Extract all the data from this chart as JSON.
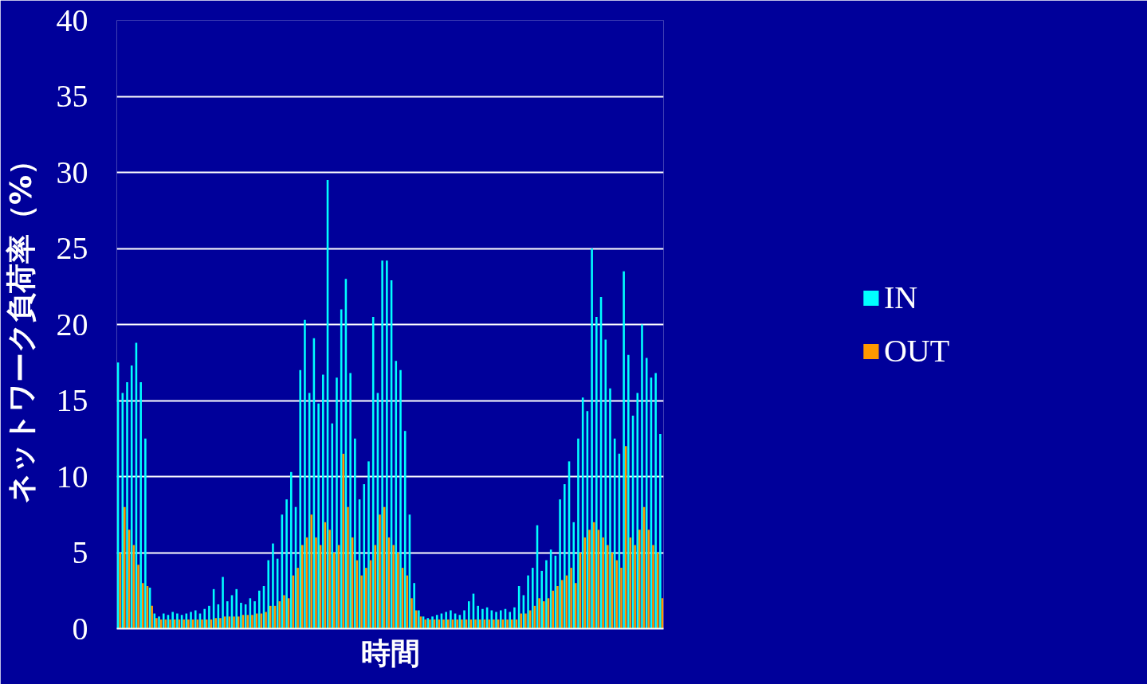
{
  "chart_data": {
    "type": "bar",
    "xlabel": "時間",
    "ylabel": "ネットワーク負荷率（%）",
    "categories": [
      null,
      null,
      null,
      null,
      null,
      null,
      null,
      null,
      null,
      null,
      null,
      null,
      null,
      null,
      null,
      null,
      null,
      null,
      null,
      null,
      null,
      null,
      null,
      null,
      null,
      null,
      null,
      null,
      null,
      null,
      null,
      null,
      null,
      null,
      null,
      null,
      null,
      null,
      null,
      null,
      null,
      null,
      null,
      null,
      null,
      null,
      null,
      null,
      null,
      null,
      null,
      null,
      null,
      null,
      null,
      null,
      null,
      null,
      null,
      null,
      null,
      null,
      null,
      null,
      null,
      null,
      null,
      null,
      null,
      null,
      null,
      null,
      null,
      null,
      null,
      null,
      null,
      null,
      null,
      null,
      null,
      null,
      null,
      null,
      null,
      null,
      null,
      null,
      null,
      null,
      null,
      null,
      null,
      null,
      null,
      null,
      null,
      null,
      null,
      null,
      null,
      null,
      null,
      null,
      null,
      null,
      null,
      null,
      null,
      null,
      null,
      null,
      null,
      null,
      null,
      null,
      null,
      null,
      null,
      null
    ],
    "series": [
      {
        "name": "IN",
        "color": "#00ffff",
        "values": [
          17.5,
          15.5,
          16.2,
          17.3,
          18.8,
          16.2,
          12.5,
          2.7,
          1.0,
          0.8,
          1.0,
          0.9,
          1.1,
          1.0,
          0.9,
          1.0,
          1.1,
          1.2,
          1.0,
          1.3,
          1.5,
          2.6,
          1.6,
          3.4,
          1.8,
          2.2,
          2.6,
          1.7,
          1.6,
          2.0,
          1.8,
          2.5,
          2.8,
          4.5,
          5.6,
          4.6,
          7.5,
          8.5,
          10.3,
          8.0,
          17.0,
          20.3,
          15.5,
          19.1,
          14.8,
          16.7,
          29.5,
          13.5,
          16.5,
          21.0,
          23.0,
          16.8,
          12.5,
          8.5,
          9.5,
          11.0,
          20.5,
          15.5,
          24.2,
          24.2,
          22.9,
          17.6,
          17.0,
          13.0,
          7.5,
          3.0,
          1.2,
          0.8,
          0.7,
          0.8,
          0.9,
          1.0,
          1.1,
          1.2,
          1.0,
          0.9,
          1.2,
          1.8,
          2.3,
          1.5,
          1.3,
          1.4,
          1.2,
          1.1,
          1.2,
          1.3,
          1.1,
          1.4,
          2.8,
          2.2,
          3.5,
          4.0,
          6.8,
          3.8,
          4.5,
          5.2,
          4.8,
          8.5,
          9.5,
          11.0,
          7.0,
          12.5,
          15.2,
          14.3,
          25.0,
          20.5,
          21.8,
          19.0,
          15.8,
          12.5,
          11.5,
          23.5,
          18.0,
          14.0,
          15.5,
          20.0,
          17.8,
          16.5,
          16.8,
          12.8
        ]
      },
      {
        "name": "OUT",
        "color": "#ff9900",
        "values": [
          5.0,
          8.0,
          6.5,
          5.5,
          4.2,
          3.0,
          2.8,
          1.5,
          0.7,
          0.6,
          0.6,
          0.6,
          0.6,
          0.6,
          0.6,
          0.6,
          0.6,
          0.6,
          0.6,
          0.6,
          0.6,
          0.7,
          0.7,
          0.8,
          0.8,
          0.8,
          0.8,
          0.9,
          0.9,
          0.9,
          1.0,
          1.0,
          1.1,
          1.5,
          1.5,
          1.8,
          2.2,
          2.0,
          3.5,
          4.0,
          5.5,
          6.0,
          7.5,
          6.0,
          5.5,
          7.0,
          6.5,
          5.0,
          5.5,
          11.5,
          8.0,
          6.0,
          4.5,
          3.5,
          4.0,
          4.5,
          5.5,
          7.5,
          8.0,
          6.0,
          5.5,
          5.0,
          4.0,
          3.5,
          2.0,
          1.2,
          0.8,
          0.6,
          0.6,
          0.6,
          0.6,
          0.6,
          0.6,
          0.6,
          0.6,
          0.6,
          0.6,
          0.6,
          0.6,
          0.6,
          0.6,
          0.6,
          0.6,
          0.6,
          0.6,
          0.6,
          0.6,
          0.6,
          1.0,
          1.0,
          1.2,
          1.5,
          2.0,
          1.8,
          2.0,
          2.5,
          2.8,
          3.2,
          3.5,
          4.0,
          3.0,
          5.0,
          6.0,
          6.5,
          7.0,
          6.5,
          6.0,
          5.5,
          5.0,
          4.5,
          4.0,
          12.0,
          6.0,
          5.5,
          6.5,
          8.0,
          6.5,
          5.5,
          5.0,
          2.0
        ]
      }
    ],
    "ylim": [
      0,
      40
    ],
    "yticks": [
      0,
      5,
      10,
      15,
      20,
      25,
      30,
      35,
      40
    ],
    "grid": "y",
    "legend": "right",
    "tick_labels": "y"
  }
}
